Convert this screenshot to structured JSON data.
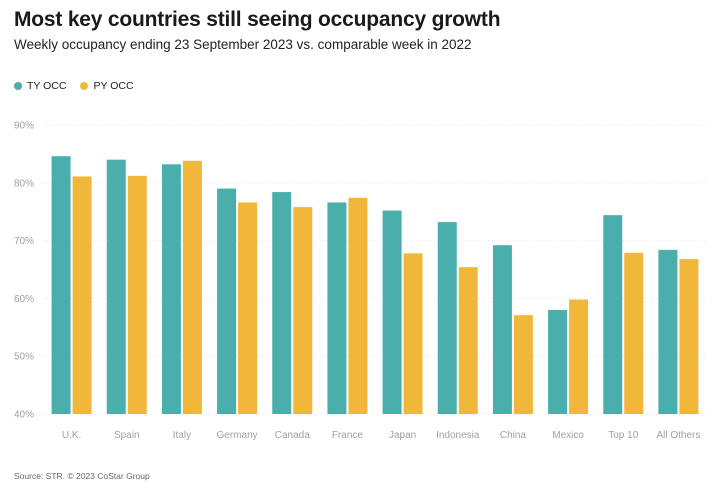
{
  "header": {
    "title": "Most key countries still seeing occupancy growth",
    "subtitle": "Weekly occupancy ending 23 September 2023 vs. comparable week in 2022"
  },
  "legend": {
    "items": [
      {
        "label": "TY OCC",
        "color": "#4aafac"
      },
      {
        "label": "PY OCC",
        "color": "#f0b73a"
      }
    ]
  },
  "footer": {
    "source": "Source: STR. © 2023 CoStar Group"
  },
  "chart_data": {
    "type": "bar",
    "categories": [
      "U.K.",
      "Spain",
      "Italy",
      "Germany",
      "Canada",
      "France",
      "Japan",
      "Indonesia",
      "China",
      "Mexico",
      "Top 10",
      "All Others"
    ],
    "series": [
      {
        "name": "TY OCC",
        "color": "#4aafac",
        "values": [
          84.6,
          84.0,
          83.2,
          79.0,
          78.4,
          76.6,
          75.2,
          73.2,
          69.2,
          58.0,
          74.4,
          68.4
        ]
      },
      {
        "name": "PY OCC",
        "color": "#f0b73a",
        "values": [
          81.1,
          81.2,
          83.8,
          76.6,
          75.8,
          77.4,
          67.8,
          65.4,
          57.1,
          59.8,
          67.9,
          66.8
        ]
      }
    ],
    "ylim": [
      40,
      90
    ],
    "yticks": [
      "40%",
      "50%",
      "60%",
      "70%",
      "80%",
      "90%"
    ],
    "ytick_values": [
      40,
      50,
      60,
      70,
      80,
      90
    ],
    "grid": true,
    "legend_position": "top-left"
  }
}
